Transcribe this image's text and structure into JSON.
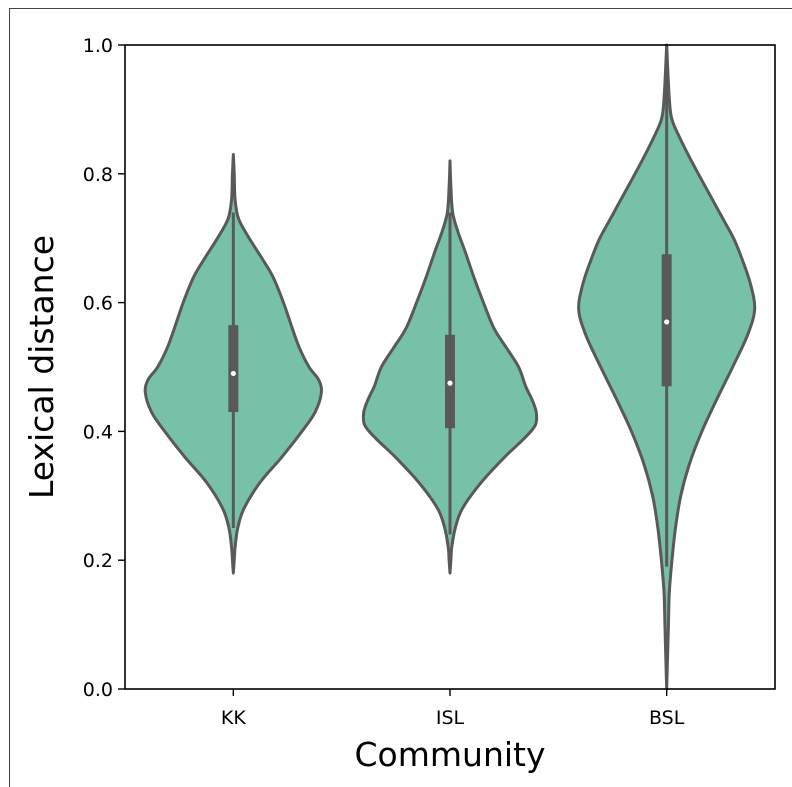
{
  "chart_data": {
    "type": "violin",
    "title": "",
    "xlabel": "Community",
    "ylabel": "Lexical distance",
    "categories": [
      "KK",
      "ISL",
      "BSL"
    ],
    "ylim": [
      0.0,
      1.0
    ],
    "yticks": [
      "0.0",
      "0.2",
      "0.4",
      "0.6",
      "0.8",
      "1.0"
    ],
    "grid": false,
    "fill_color": "#76c1a7",
    "line_color": "#595959",
    "median_color": "#ffffff",
    "violins": [
      {
        "category": "KK",
        "min": 0.18,
        "max": 0.83,
        "q1": 0.43,
        "median": 0.49,
        "q3": 0.565,
        "whisker_low": 0.25,
        "whisker_high": 0.74,
        "density": [
          [
            0.18,
            0.0
          ],
          [
            0.2,
            0.01
          ],
          [
            0.22,
            0.02
          ],
          [
            0.25,
            0.05
          ],
          [
            0.28,
            0.12
          ],
          [
            0.32,
            0.3
          ],
          [
            0.36,
            0.55
          ],
          [
            0.4,
            0.78
          ],
          [
            0.43,
            0.93
          ],
          [
            0.46,
            1.0
          ],
          [
            0.48,
            0.97
          ],
          [
            0.5,
            0.86
          ],
          [
            0.53,
            0.75
          ],
          [
            0.56,
            0.67
          ],
          [
            0.6,
            0.57
          ],
          [
            0.64,
            0.45
          ],
          [
            0.67,
            0.32
          ],
          [
            0.7,
            0.18
          ],
          [
            0.73,
            0.06
          ],
          [
            0.76,
            0.02
          ],
          [
            0.8,
            0.01
          ],
          [
            0.83,
            0.0
          ]
        ]
      },
      {
        "category": "ISL",
        "min": 0.18,
        "max": 0.82,
        "q1": 0.405,
        "median": 0.475,
        "q3": 0.55,
        "whisker_low": 0.24,
        "whisker_high": 0.74,
        "density": [
          [
            0.18,
            0.0
          ],
          [
            0.2,
            0.01
          ],
          [
            0.22,
            0.02
          ],
          [
            0.25,
            0.06
          ],
          [
            0.28,
            0.14
          ],
          [
            0.32,
            0.35
          ],
          [
            0.36,
            0.62
          ],
          [
            0.39,
            0.85
          ],
          [
            0.41,
            0.97
          ],
          [
            0.43,
            0.98
          ],
          [
            0.45,
            0.93
          ],
          [
            0.47,
            0.86
          ],
          [
            0.5,
            0.78
          ],
          [
            0.53,
            0.64
          ],
          [
            0.56,
            0.5
          ],
          [
            0.6,
            0.38
          ],
          [
            0.64,
            0.27
          ],
          [
            0.68,
            0.17
          ],
          [
            0.71,
            0.09
          ],
          [
            0.74,
            0.03
          ],
          [
            0.78,
            0.01
          ],
          [
            0.82,
            0.0
          ]
        ]
      },
      {
        "category": "BSL",
        "min": 0.0,
        "max": 1.0,
        "q1": 0.47,
        "median": 0.57,
        "q3": 0.675,
        "whisker_low": 0.19,
        "whisker_high": 1.0,
        "density": [
          [
            0.0,
            0.0
          ],
          [
            0.05,
            0.01
          ],
          [
            0.1,
            0.02
          ],
          [
            0.15,
            0.03
          ],
          [
            0.2,
            0.06
          ],
          [
            0.25,
            0.1
          ],
          [
            0.3,
            0.16
          ],
          [
            0.35,
            0.26
          ],
          [
            0.4,
            0.4
          ],
          [
            0.45,
            0.57
          ],
          [
            0.5,
            0.75
          ],
          [
            0.55,
            0.92
          ],
          [
            0.59,
            1.0
          ],
          [
            0.63,
            0.95
          ],
          [
            0.67,
            0.85
          ],
          [
            0.7,
            0.76
          ],
          [
            0.73,
            0.64
          ],
          [
            0.77,
            0.48
          ],
          [
            0.81,
            0.32
          ],
          [
            0.85,
            0.17
          ],
          [
            0.88,
            0.07
          ],
          [
            0.9,
            0.04
          ],
          [
            0.94,
            0.02
          ],
          [
            1.0,
            0.0
          ]
        ]
      }
    ]
  }
}
